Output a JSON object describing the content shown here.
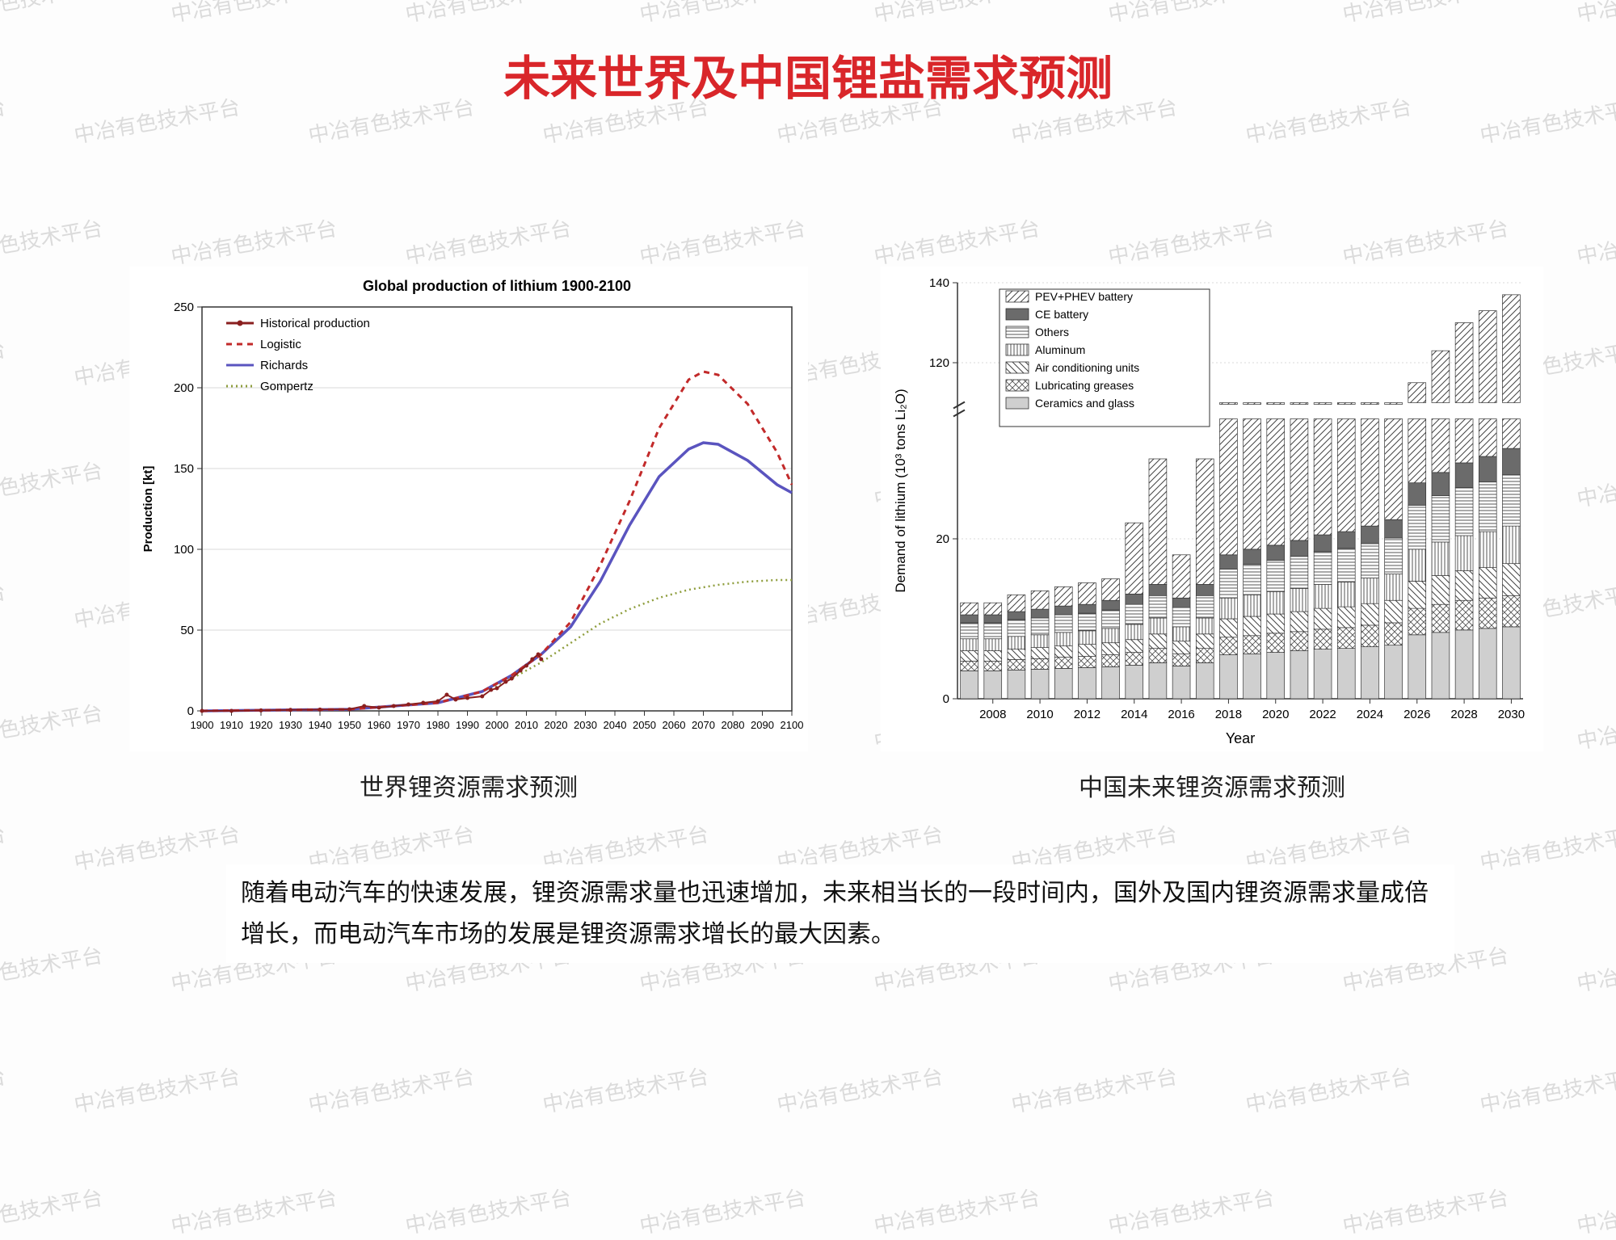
{
  "watermark_text": "中冶有色技术平台",
  "title": "未来世界及中国锂盐需求预测",
  "left_chart": {
    "type": "line",
    "title": "Global production of lithium 1900-2100",
    "title_fontsize": 16,
    "caption": "世界锂资源需求预测",
    "x_ticks": [
      1900,
      1910,
      1920,
      1930,
      1940,
      1950,
      1960,
      1970,
      1980,
      1990,
      2000,
      2010,
      2020,
      2030,
      2040,
      2050,
      2060,
      2070,
      2080,
      2090,
      2100
    ],
    "y_ticks": [
      0,
      50,
      100,
      150,
      200,
      250
    ],
    "ylabel": "Production [kt]",
    "xlim": [
      1900,
      2100
    ],
    "ylim": [
      0,
      250
    ],
    "background_color": "#ffffff",
    "grid_color": "#d9d9d9",
    "axis_color": "#333333",
    "legend": [
      {
        "name": "Historical production",
        "color": "#8a1f1f",
        "style": "solid",
        "marker": "dot"
      },
      {
        "name": "Logistic",
        "color": "#c22a2a",
        "style": "dashed"
      },
      {
        "name": "Richards",
        "color": "#5a54bf",
        "style": "solid"
      },
      {
        "name": "Gompertz",
        "color": "#8f9e3e",
        "style": "dotted"
      }
    ],
    "series": {
      "historical": {
        "color": "#8a1f1f",
        "points": [
          [
            1900,
            0
          ],
          [
            1910,
            0
          ],
          [
            1920,
            0.3
          ],
          [
            1930,
            0.6
          ],
          [
            1940,
            0.8
          ],
          [
            1950,
            1
          ],
          [
            1955,
            3
          ],
          [
            1960,
            2
          ],
          [
            1965,
            3
          ],
          [
            1970,
            4
          ],
          [
            1975,
            5
          ],
          [
            1980,
            6
          ],
          [
            1983,
            10
          ],
          [
            1986,
            7
          ],
          [
            1990,
            8
          ],
          [
            1995,
            9
          ],
          [
            1998,
            13
          ],
          [
            2000,
            14
          ],
          [
            2003,
            18
          ],
          [
            2005,
            20
          ],
          [
            2008,
            25
          ],
          [
            2010,
            28
          ],
          [
            2012,
            32
          ],
          [
            2014,
            35
          ],
          [
            2015,
            32
          ]
        ]
      },
      "logistic": {
        "color": "#c22a2a",
        "dash": "7,6",
        "points": [
          [
            1900,
            0
          ],
          [
            1950,
            1
          ],
          [
            1980,
            5
          ],
          [
            1995,
            12
          ],
          [
            2005,
            22
          ],
          [
            2015,
            35
          ],
          [
            2025,
            55
          ],
          [
            2035,
            90
          ],
          [
            2045,
            130
          ],
          [
            2055,
            175
          ],
          [
            2065,
            205
          ],
          [
            2070,
            210
          ],
          [
            2075,
            208
          ],
          [
            2085,
            190
          ],
          [
            2095,
            160
          ],
          [
            2100,
            140
          ]
        ]
      },
      "richards": {
        "color": "#5a54bf",
        "points": [
          [
            1900,
            0
          ],
          [
            1950,
            1
          ],
          [
            1980,
            5
          ],
          [
            1995,
            12
          ],
          [
            2005,
            22
          ],
          [
            2015,
            35
          ],
          [
            2025,
            52
          ],
          [
            2035,
            80
          ],
          [
            2045,
            115
          ],
          [
            2055,
            145
          ],
          [
            2065,
            162
          ],
          [
            2070,
            166
          ],
          [
            2075,
            165
          ],
          [
            2085,
            155
          ],
          [
            2095,
            140
          ],
          [
            2100,
            135
          ]
        ]
      },
      "gompertz": {
        "color": "#8f9e3e",
        "dash": "2,4",
        "points": [
          [
            1900,
            0
          ],
          [
            1950,
            1
          ],
          [
            1980,
            5
          ],
          [
            1995,
            12
          ],
          [
            2005,
            20
          ],
          [
            2015,
            30
          ],
          [
            2025,
            42
          ],
          [
            2035,
            54
          ],
          [
            2045,
            63
          ],
          [
            2055,
            70
          ],
          [
            2065,
            75
          ],
          [
            2075,
            78
          ],
          [
            2085,
            80
          ],
          [
            2095,
            81
          ],
          [
            2100,
            81
          ]
        ]
      }
    }
  },
  "right_chart": {
    "type": "stacked-bar",
    "caption": "中国未来锂资源需求预测",
    "ylabel": "Demand of lithium (10³ tons Li₂O)",
    "x_label": "Year",
    "x_ticks": [
      2008,
      2010,
      2012,
      2014,
      2016,
      2018,
      2020,
      2022,
      2024,
      2026,
      2028,
      2030
    ],
    "low_ylim": [
      0,
      35
    ],
    "low_yticks": [
      0,
      20
    ],
    "high_ylim": [
      110,
      140
    ],
    "high_yticks": [
      120,
      140
    ],
    "background_color": "#ffffff",
    "grid_color": "#d9d9d9",
    "axis_color": "#333333",
    "legend_items": [
      "PEV+PHEV battery",
      "CE battery",
      "Others",
      "Aluminum",
      "Air conditioning units",
      "Lubricating greases",
      "Ceramics and glass"
    ],
    "legend_patterns": [
      "diag-r",
      "solid-dk",
      "horiz",
      "vert",
      "diag-l",
      "cross",
      "solid-lt"
    ],
    "years": [
      2007,
      2008,
      2009,
      2010,
      2011,
      2012,
      2013,
      2014,
      2015,
      2016,
      2017,
      2018,
      2019,
      2020,
      2021,
      2022,
      2023,
      2024,
      2025,
      2026,
      2027,
      2028,
      2029,
      2030
    ],
    "totals_display": [
      12,
      12,
      13,
      13.5,
      14,
      14.5,
      15,
      22,
      30,
      18,
      30,
      60,
      62,
      64,
      66,
      68,
      70,
      72,
      75,
      115,
      123,
      130,
      133,
      137
    ],
    "stacks": [
      {
        "segs": [
          3.5,
          1.2,
          1.3,
          1.5,
          2.0,
          1.0,
          1.5
        ]
      },
      {
        "segs": [
          3.5,
          1.2,
          1.3,
          1.5,
          2.0,
          1.0,
          1.5
        ]
      },
      {
        "segs": [
          3.6,
          1.3,
          1.3,
          1.6,
          2.1,
          1.0,
          2.1
        ]
      },
      {
        "segs": [
          3.7,
          1.3,
          1.4,
          1.6,
          2.1,
          1.1,
          2.3
        ]
      },
      {
        "segs": [
          3.8,
          1.4,
          1.4,
          1.7,
          2.2,
          1.1,
          2.4
        ]
      },
      {
        "segs": [
          3.9,
          1.4,
          1.5,
          1.7,
          2.2,
          1.1,
          2.7
        ]
      },
      {
        "segs": [
          4.0,
          1.5,
          1.5,
          1.8,
          2.3,
          1.2,
          2.7
        ]
      },
      {
        "segs": [
          4.2,
          1.6,
          1.6,
          1.9,
          2.5,
          1.3,
          8.9
        ]
      },
      {
        "segs": [
          4.5,
          1.8,
          1.8,
          2.0,
          2.8,
          1.4,
          15.7
        ]
      },
      {
        "segs": [
          4.1,
          1.5,
          1.6,
          1.8,
          2.4,
          1.2,
          5.4
        ]
      },
      {
        "segs": [
          4.5,
          1.8,
          1.8,
          2.0,
          2.8,
          1.4,
          15.7
        ]
      },
      {
        "segs": [
          5.5,
          2.2,
          2.3,
          2.6,
          3.6,
          1.8,
          42
        ]
      },
      {
        "segs": [
          5.6,
          2.3,
          2.4,
          2.7,
          3.8,
          1.9,
          43.3
        ]
      },
      {
        "segs": [
          5.8,
          2.4,
          2.4,
          2.8,
          3.9,
          1.9,
          44.8
        ]
      },
      {
        "segs": [
          6.0,
          2.4,
          2.5,
          2.9,
          4.0,
          2.0,
          46.2
        ]
      },
      {
        "segs": [
          6.2,
          2.5,
          2.6,
          3.0,
          4.1,
          2.1,
          47.5
        ]
      },
      {
        "segs": [
          6.3,
          2.6,
          2.6,
          3.1,
          4.2,
          2.1,
          49.1
        ]
      },
      {
        "segs": [
          6.5,
          2.7,
          2.7,
          3.2,
          4.3,
          2.2,
          50.4
        ]
      },
      {
        "segs": [
          6.7,
          2.8,
          2.8,
          3.3,
          4.5,
          2.3,
          52.6
        ]
      },
      {
        "segs": [
          8.0,
          3.3,
          3.4,
          4.0,
          5.5,
          2.8,
          88
        ]
      },
      {
        "segs": [
          8.3,
          3.5,
          3.6,
          4.2,
          5.8,
          2.9,
          94.7
        ]
      },
      {
        "segs": [
          8.6,
          3.7,
          3.7,
          4.4,
          6.0,
          3.1,
          100.5
        ]
      },
      {
        "segs": [
          8.8,
          3.8,
          3.8,
          4.5,
          6.2,
          3.2,
          102.7
        ]
      },
      {
        "segs": [
          9.0,
          3.9,
          4.0,
          4.7,
          6.4,
          3.3,
          105.7
        ]
      }
    ]
  },
  "description": "随着电动汽车的快速发展，锂资源需求量也迅速增加，未来相当长的一段时间内，国外及国内锂资源需求量成倍增长，而电动汽车市场的发展是锂资源需求增长的最大因素。"
}
